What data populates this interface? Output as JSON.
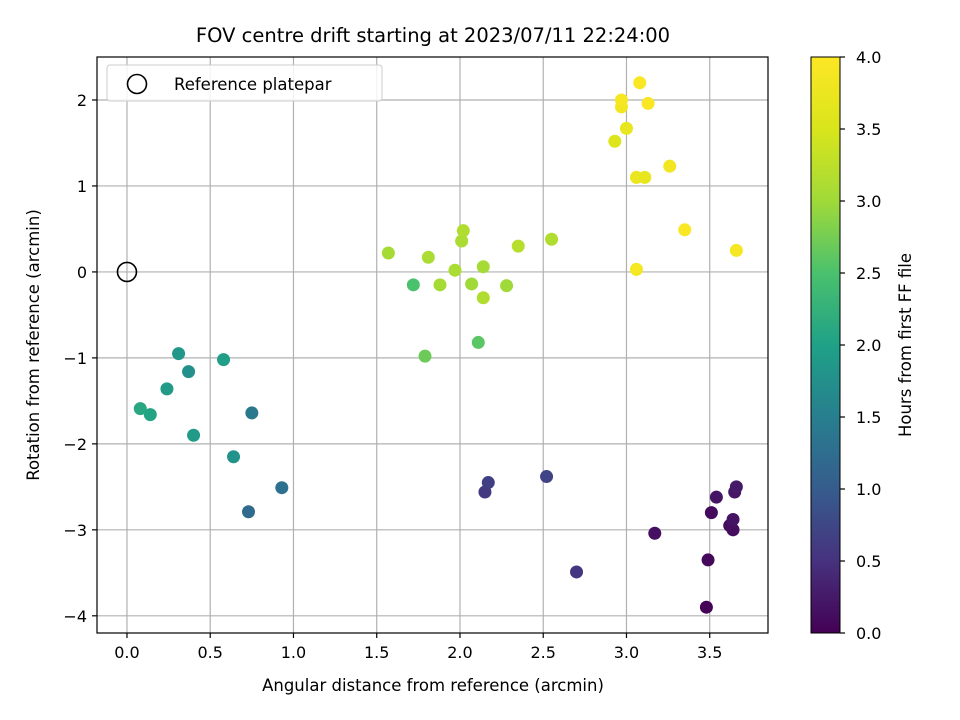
{
  "chart_data": {
    "type": "scatter",
    "title": "FOV centre drift starting at 2023/07/11 22:24:00",
    "xlabel": "Angular distance from reference (arcmin)",
    "ylabel": "Rotation from reference (arcmin)",
    "xlim": [
      -0.18,
      3.85
    ],
    "ylim": [
      -4.2,
      2.5
    ],
    "xticks": [
      0.0,
      0.5,
      1.0,
      1.5,
      2.0,
      2.5,
      3.0,
      3.5
    ],
    "xtick_labels": [
      "0.0",
      "0.5",
      "1.0",
      "1.5",
      "2.0",
      "2.5",
      "3.0",
      "3.5"
    ],
    "yticks": [
      -4,
      -3,
      -2,
      -1,
      0,
      1,
      2
    ],
    "ytick_labels": [
      "−4",
      "−3",
      "−2",
      "−1",
      "0",
      "1",
      "2"
    ],
    "grid": true,
    "legend": {
      "placement": "top-left",
      "entries": [
        "Reference platepar"
      ]
    },
    "reference_point": {
      "x": 0.0,
      "y": 0.0
    },
    "colorbar": {
      "label": "Hours from first FF file",
      "colormap": "viridis",
      "range": [
        0.0,
        4.0
      ],
      "ticks": [
        "0.0",
        "0.5",
        "1.0",
        "1.5",
        "2.0",
        "2.5",
        "3.0",
        "3.5",
        "4.0"
      ]
    },
    "points": [
      {
        "x": 3.48,
        "y": -3.9,
        "c": 0.02
      },
      {
        "x": 3.49,
        "y": -3.35,
        "c": 0.08
      },
      {
        "x": 3.17,
        "y": -3.04,
        "c": 0.15
      },
      {
        "x": 3.62,
        "y": -2.95,
        "c": 0.1
      },
      {
        "x": 3.64,
        "y": -3.0,
        "c": 0.12
      },
      {
        "x": 3.64,
        "y": -2.88,
        "c": 0.18
      },
      {
        "x": 3.51,
        "y": -2.8,
        "c": 0.1
      },
      {
        "x": 3.54,
        "y": -2.62,
        "c": 0.2
      },
      {
        "x": 3.65,
        "y": -2.56,
        "c": 0.22
      },
      {
        "x": 3.66,
        "y": -2.5,
        "c": 0.25
      },
      {
        "x": 2.7,
        "y": -3.49,
        "c": 0.55
      },
      {
        "x": 2.15,
        "y": -2.56,
        "c": 0.6
      },
      {
        "x": 2.17,
        "y": -2.45,
        "c": 0.65
      },
      {
        "x": 2.52,
        "y": -2.38,
        "c": 0.7
      },
      {
        "x": 0.73,
        "y": -2.79,
        "c": 1.2
      },
      {
        "x": 0.93,
        "y": -2.51,
        "c": 1.3
      },
      {
        "x": 0.75,
        "y": -1.64,
        "c": 1.4
      },
      {
        "x": 0.64,
        "y": -2.15,
        "c": 1.8
      },
      {
        "x": 0.4,
        "y": -1.9,
        "c": 1.9
      },
      {
        "x": 0.14,
        "y": -1.66,
        "c": 2.05
      },
      {
        "x": 0.08,
        "y": -1.59,
        "c": 2.1
      },
      {
        "x": 0.24,
        "y": -1.36,
        "c": 1.9
      },
      {
        "x": 0.37,
        "y": -1.16,
        "c": 1.75
      },
      {
        "x": 0.31,
        "y": -0.95,
        "c": 1.85
      },
      {
        "x": 0.58,
        "y": -1.02,
        "c": 1.95
      },
      {
        "x": 1.72,
        "y": -0.15,
        "c": 2.5
      },
      {
        "x": 1.79,
        "y": -0.98,
        "c": 2.7
      },
      {
        "x": 2.11,
        "y": -0.82,
        "c": 2.6
      },
      {
        "x": 1.57,
        "y": 0.22,
        "c": 3.05
      },
      {
        "x": 1.81,
        "y": 0.17,
        "c": 3.1
      },
      {
        "x": 1.88,
        "y": -0.15,
        "c": 3.05
      },
      {
        "x": 1.97,
        "y": 0.02,
        "c": 3.1
      },
      {
        "x": 2.01,
        "y": 0.36,
        "c": 3.1
      },
      {
        "x": 2.02,
        "y": 0.48,
        "c": 3.15
      },
      {
        "x": 2.07,
        "y": -0.14,
        "c": 3.0
      },
      {
        "x": 2.14,
        "y": 0.06,
        "c": 3.05
      },
      {
        "x": 2.14,
        "y": -0.3,
        "c": 3.15
      },
      {
        "x": 2.28,
        "y": -0.16,
        "c": 3.0
      },
      {
        "x": 2.35,
        "y": 0.3,
        "c": 3.2
      },
      {
        "x": 2.55,
        "y": 0.38,
        "c": 3.15
      },
      {
        "x": 2.93,
        "y": 1.52,
        "c": 3.55
      },
      {
        "x": 2.97,
        "y": 1.92,
        "c": 3.85
      },
      {
        "x": 2.97,
        "y": 2.0,
        "c": 3.9
      },
      {
        "x": 3.0,
        "y": 1.67,
        "c": 3.7
      },
      {
        "x": 3.06,
        "y": 1.1,
        "c": 3.75
      },
      {
        "x": 3.11,
        "y": 1.1,
        "c": 3.7
      },
      {
        "x": 3.08,
        "y": 2.2,
        "c": 3.95
      },
      {
        "x": 3.13,
        "y": 1.96,
        "c": 3.95
      },
      {
        "x": 3.26,
        "y": 1.23,
        "c": 3.85
      },
      {
        "x": 3.35,
        "y": 0.49,
        "c": 3.95
      },
      {
        "x": 3.06,
        "y": 0.03,
        "c": 3.9
      },
      {
        "x": 3.66,
        "y": 0.25,
        "c": 3.9
      }
    ]
  }
}
